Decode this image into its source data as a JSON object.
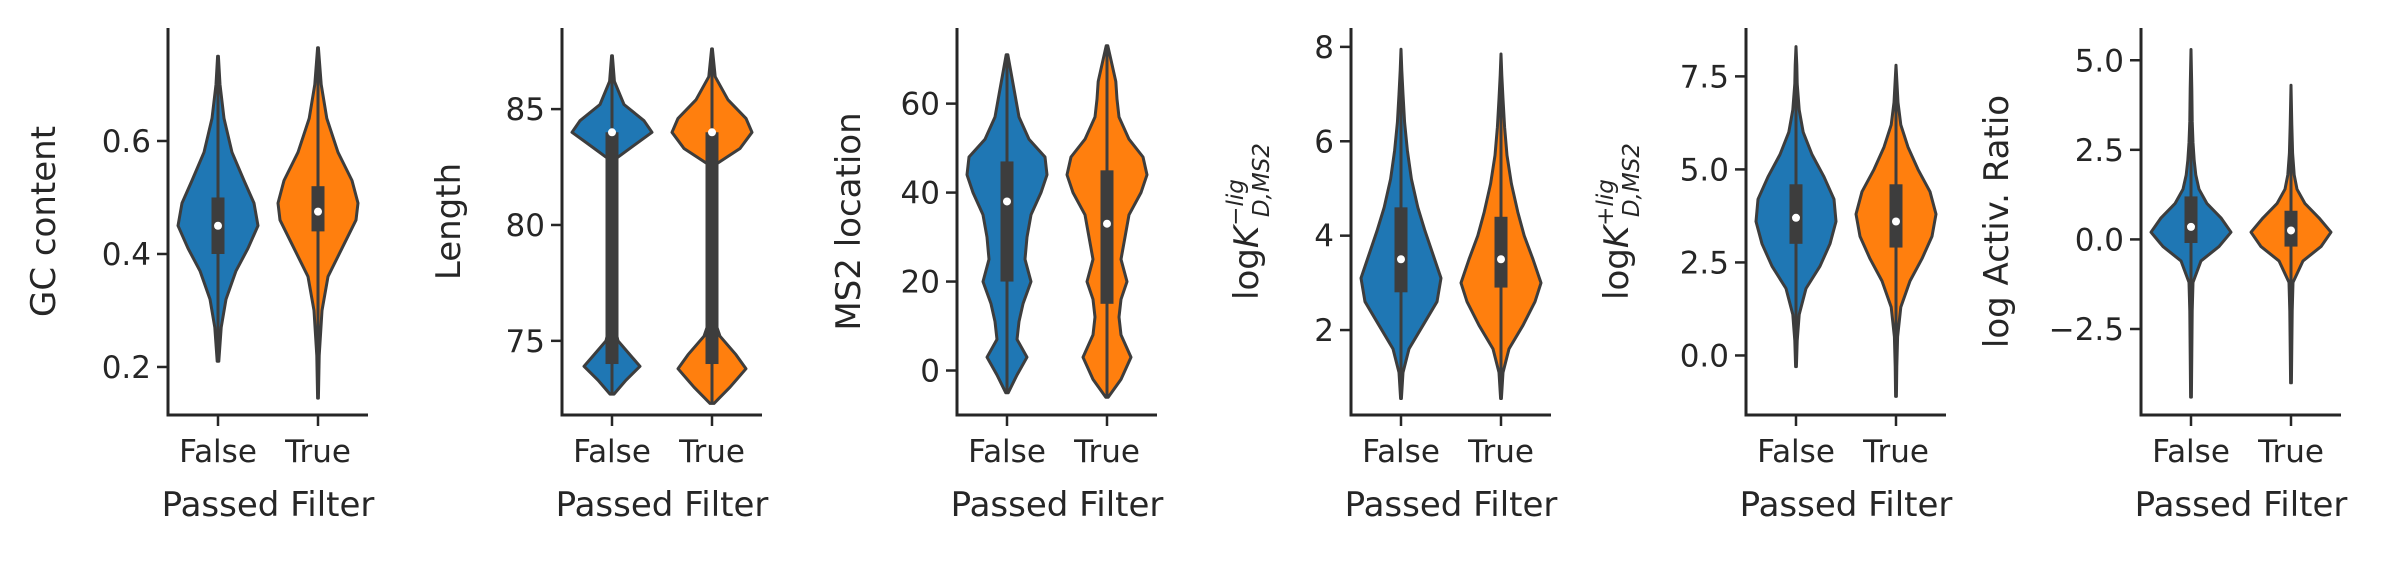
{
  "chart_data": [
    {
      "type": "violin",
      "categories": [
        "False",
        "True"
      ],
      "xlabel": "Passed Filter",
      "ylabel": {
        "text": "GC content"
      },
      "ylim": [
        0.115,
        0.8
      ],
      "yticks": [
        0.2,
        0.4,
        0.6
      ],
      "ytick_labels": [
        "0.2",
        "0.4",
        "0.6"
      ],
      "series": [
        {
          "category": "False",
          "color": "#1f77b4",
          "min": 0.21,
          "q1": 0.4,
          "median": 0.45,
          "q3": 0.5,
          "max": 0.75,
          "density": [
            [
              0.21,
              0.02
            ],
            [
              0.27,
              0.08
            ],
            [
              0.32,
              0.2
            ],
            [
              0.37,
              0.45
            ],
            [
              0.41,
              0.75
            ],
            [
              0.45,
              1.0
            ],
            [
              0.49,
              0.9
            ],
            [
              0.53,
              0.65
            ],
            [
              0.58,
              0.35
            ],
            [
              0.64,
              0.15
            ],
            [
              0.7,
              0.05
            ],
            [
              0.75,
              0.01
            ]
          ]
        },
        {
          "category": "True",
          "color": "#ff7f0e",
          "min": 0.145,
          "q1": 0.44,
          "median": 0.475,
          "q3": 0.52,
          "max": 0.765,
          "density": [
            [
              0.145,
              0.01
            ],
            [
              0.22,
              0.03
            ],
            [
              0.3,
              0.1
            ],
            [
              0.36,
              0.25
            ],
            [
              0.41,
              0.6
            ],
            [
              0.46,
              0.95
            ],
            [
              0.49,
              1.0
            ],
            [
              0.53,
              0.85
            ],
            [
              0.58,
              0.5
            ],
            [
              0.64,
              0.22
            ],
            [
              0.7,
              0.08
            ],
            [
              0.765,
              0.01
            ]
          ]
        }
      ]
    },
    {
      "type": "violin",
      "categories": [
        "False",
        "True"
      ],
      "xlabel": "Passed Filter",
      "ylabel": {
        "text": "Length"
      },
      "ylim": [
        71.8,
        88.5
      ],
      "yticks": [
        75,
        80,
        85
      ],
      "ytick_labels": [
        "75",
        "80",
        "85"
      ],
      "series": [
        {
          "category": "False",
          "color": "#1f77b4",
          "min": 72.7,
          "q1": 74.0,
          "median": 84.0,
          "q3": 84.0,
          "max": 87.3,
          "density": [
            [
              72.7,
              0.05
            ],
            [
              73.3,
              0.35
            ],
            [
              73.9,
              0.7
            ],
            [
              74.3,
              0.5
            ],
            [
              75.0,
              0.15
            ],
            [
              75.8,
              0.04
            ],
            [
              77,
              0.0
            ],
            [
              80,
              0.0
            ],
            [
              82,
              0.0
            ],
            [
              82.8,
              0.05
            ],
            [
              83.5,
              0.6
            ],
            [
              84.0,
              1.0
            ],
            [
              84.5,
              0.8
            ],
            [
              85.2,
              0.3
            ],
            [
              86.2,
              0.06
            ],
            [
              87.3,
              0.01
            ]
          ]
        },
        {
          "category": "True",
          "color": "#ff7f0e",
          "min": 72.3,
          "q1": 74.0,
          "median": 84.0,
          "q3": 84.0,
          "max": 87.6,
          "density": [
            [
              72.3,
              0.05
            ],
            [
              73.0,
              0.45
            ],
            [
              73.8,
              0.85
            ],
            [
              74.4,
              0.6
            ],
            [
              75.2,
              0.2
            ],
            [
              76,
              0.04
            ],
            [
              77,
              0.0
            ],
            [
              80,
              0.0
            ],
            [
              82,
              0.0
            ],
            [
              82.6,
              0.08
            ],
            [
              83.3,
              0.7
            ],
            [
              84.0,
              1.0
            ],
            [
              84.6,
              0.85
            ],
            [
              85.4,
              0.4
            ],
            [
              86.4,
              0.08
            ],
            [
              87.6,
              0.01
            ]
          ]
        }
      ]
    },
    {
      "type": "violin",
      "categories": [
        "False",
        "True"
      ],
      "xlabel": "Passed Filter",
      "ylabel": {
        "text": "MS2 location"
      },
      "ylim": [
        -10,
        77
      ],
      "yticks": [
        0,
        20,
        40,
        60
      ],
      "ytick_labels": [
        "0",
        "20",
        "40",
        "60"
      ],
      "series": [
        {
          "category": "False",
          "color": "#1f77b4",
          "min": -5,
          "q1": 20,
          "median": 38,
          "q3": 47,
          "max": 71,
          "density": [
            [
              -5,
              0.03
            ],
            [
              -1,
              0.25
            ],
            [
              3,
              0.5
            ],
            [
              7,
              0.25
            ],
            [
              11,
              0.3
            ],
            [
              15,
              0.4
            ],
            [
              20,
              0.6
            ],
            [
              25,
              0.45
            ],
            [
              30,
              0.5
            ],
            [
              35,
              0.6
            ],
            [
              40,
              0.85
            ],
            [
              44,
              1.0
            ],
            [
              48,
              0.95
            ],
            [
              52,
              0.55
            ],
            [
              57,
              0.3
            ],
            [
              62,
              0.2
            ],
            [
              66,
              0.12
            ],
            [
              71,
              0.02
            ]
          ]
        },
        {
          "category": "True",
          "color": "#ff7f0e",
          "min": -6,
          "q1": 15,
          "median": 33,
          "q3": 45,
          "max": 73,
          "density": [
            [
              -6,
              0.03
            ],
            [
              -2,
              0.35
            ],
            [
              3,
              0.6
            ],
            [
              8,
              0.35
            ],
            [
              12,
              0.3
            ],
            [
              16,
              0.35
            ],
            [
              20,
              0.5
            ],
            [
              25,
              0.35
            ],
            [
              30,
              0.45
            ],
            [
              35,
              0.55
            ],
            [
              40,
              0.85
            ],
            [
              44,
              1.0
            ],
            [
              48,
              0.9
            ],
            [
              52,
              0.55
            ],
            [
              57,
              0.3
            ],
            [
              61,
              0.25
            ],
            [
              65,
              0.22
            ],
            [
              69,
              0.12
            ],
            [
              73,
              0.02
            ]
          ]
        }
      ]
    },
    {
      "type": "violin",
      "categories": [
        "False",
        "True"
      ],
      "xlabel": "Passed Filter",
      "ylabel": {
        "text": "logK",
        "sup": "−lig",
        "sub": "D,MS2"
      },
      "ylim": [
        0.2,
        8.4
      ],
      "yticks": [
        2,
        4,
        6,
        8
      ],
      "ytick_labels": [
        "2",
        "4",
        "6",
        "8"
      ],
      "series": [
        {
          "category": "False",
          "color": "#1f77b4",
          "min": 0.55,
          "q1": 2.8,
          "median": 3.5,
          "q3": 4.6,
          "max": 7.95,
          "density": [
            [
              0.55,
              0.01
            ],
            [
              1.1,
              0.05
            ],
            [
              1.6,
              0.2
            ],
            [
              2.1,
              0.55
            ],
            [
              2.6,
              0.9
            ],
            [
              3.1,
              1.0
            ],
            [
              3.6,
              0.8
            ],
            [
              4.1,
              0.6
            ],
            [
              4.6,
              0.42
            ],
            [
              5.2,
              0.26
            ],
            [
              5.8,
              0.16
            ],
            [
              6.4,
              0.09
            ],
            [
              7.0,
              0.05
            ],
            [
              7.5,
              0.02
            ],
            [
              7.95,
              0.0
            ]
          ]
        },
        {
          "category": "True",
          "color": "#ff7f0e",
          "min": 0.55,
          "q1": 2.9,
          "median": 3.5,
          "q3": 4.4,
          "max": 7.85,
          "density": [
            [
              0.55,
              0.01
            ],
            [
              1.1,
              0.05
            ],
            [
              1.6,
              0.2
            ],
            [
              2.1,
              0.55
            ],
            [
              2.6,
              0.85
            ],
            [
              3.0,
              1.0
            ],
            [
              3.5,
              0.8
            ],
            [
              4.0,
              0.58
            ],
            [
              4.5,
              0.42
            ],
            [
              5.1,
              0.26
            ],
            [
              5.7,
              0.15
            ],
            [
              6.3,
              0.09
            ],
            [
              6.9,
              0.05
            ],
            [
              7.4,
              0.02
            ],
            [
              7.85,
              0.0
            ]
          ]
        }
      ]
    },
    {
      "type": "violin",
      "categories": [
        "False",
        "True"
      ],
      "xlabel": "Passed Filter",
      "ylabel": {
        "text": "logK",
        "sup": "+lig",
        "sub": "D,MS2"
      },
      "ylim": [
        -1.6,
        8.8
      ],
      "yticks": [
        0.0,
        2.5,
        5.0,
        7.5
      ],
      "ytick_labels": [
        "0.0",
        "2.5",
        "5.0",
        "7.5"
      ],
      "series": [
        {
          "category": "False",
          "color": "#1f77b4",
          "min": -0.3,
          "q1": 3.0,
          "median": 3.7,
          "q3": 4.6,
          "max": 8.3,
          "density": [
            [
              -0.3,
              0.01
            ],
            [
              0.4,
              0.03
            ],
            [
              1.1,
              0.08
            ],
            [
              1.8,
              0.25
            ],
            [
              2.4,
              0.6
            ],
            [
              3.0,
              0.85
            ],
            [
              3.6,
              1.0
            ],
            [
              4.2,
              0.95
            ],
            [
              4.8,
              0.7
            ],
            [
              5.4,
              0.4
            ],
            [
              6.0,
              0.18
            ],
            [
              6.6,
              0.08
            ],
            [
              7.3,
              0.03
            ],
            [
              7.8,
              0.02
            ],
            [
              8.3,
              0.0
            ]
          ]
        },
        {
          "category": "True",
          "color": "#ff7f0e",
          "min": -1.1,
          "q1": 2.9,
          "median": 3.6,
          "q3": 4.6,
          "max": 7.8,
          "density": [
            [
              -1.1,
              0.01
            ],
            [
              -0.3,
              0.02
            ],
            [
              0.5,
              0.04
            ],
            [
              1.3,
              0.12
            ],
            [
              2.0,
              0.35
            ],
            [
              2.6,
              0.65
            ],
            [
              3.2,
              0.9
            ],
            [
              3.8,
              1.0
            ],
            [
              4.4,
              0.85
            ],
            [
              5.0,
              0.55
            ],
            [
              5.6,
              0.3
            ],
            [
              6.2,
              0.12
            ],
            [
              6.8,
              0.05
            ],
            [
              7.4,
              0.02
            ],
            [
              7.8,
              0.0
            ]
          ]
        }
      ]
    },
    {
      "type": "violin",
      "categories": [
        "False",
        "True"
      ],
      "xlabel": "Passed Filter",
      "ylabel": {
        "text": "log Activ. Ratio"
      },
      "ylim": [
        -4.9,
        5.9
      ],
      "yticks": [
        -2.5,
        0.0,
        2.5,
        5.0
      ],
      "ytick_labels": [
        "−2.5",
        "0.0",
        "2.5",
        "5.0"
      ],
      "series": [
        {
          "category": "False",
          "color": "#1f77b4",
          "min": -4.4,
          "q1": -0.1,
          "median": 0.35,
          "q3": 1.2,
          "max": 5.3,
          "density": [
            [
              -4.4,
              0.01
            ],
            [
              -3.2,
              0.02
            ],
            [
              -2.0,
              0.03
            ],
            [
              -1.2,
              0.05
            ],
            [
              -0.6,
              0.25
            ],
            [
              -0.2,
              0.7
            ],
            [
              0.2,
              1.0
            ],
            [
              0.6,
              0.75
            ],
            [
              1.0,
              0.4
            ],
            [
              1.4,
              0.2
            ],
            [
              1.8,
              0.12
            ],
            [
              2.2,
              0.08
            ],
            [
              2.7,
              0.05
            ],
            [
              3.3,
              0.03
            ],
            [
              4.2,
              0.02
            ],
            [
              5.3,
              0.0
            ]
          ]
        },
        {
          "category": "True",
          "color": "#ff7f0e",
          "min": -4.0,
          "q1": -0.2,
          "median": 0.25,
          "q3": 0.8,
          "max": 4.3,
          "density": [
            [
              -4.0,
              0.01
            ],
            [
              -3.0,
              0.02
            ],
            [
              -2.0,
              0.03
            ],
            [
              -1.2,
              0.05
            ],
            [
              -0.6,
              0.3
            ],
            [
              -0.2,
              0.75
            ],
            [
              0.2,
              1.0
            ],
            [
              0.6,
              0.7
            ],
            [
              1.0,
              0.35
            ],
            [
              1.4,
              0.15
            ],
            [
              1.8,
              0.08
            ],
            [
              2.4,
              0.04
            ],
            [
              3.2,
              0.02
            ],
            [
              4.3,
              0.0
            ]
          ]
        }
      ]
    }
  ]
}
